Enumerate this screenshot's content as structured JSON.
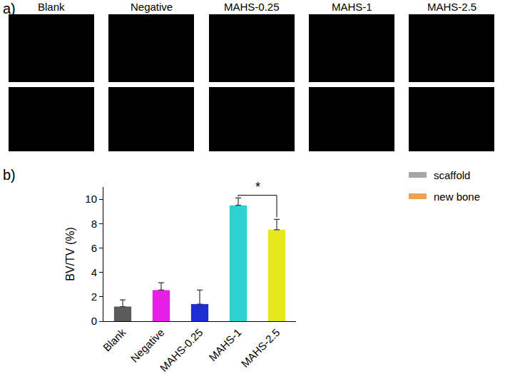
{
  "chart_data": {
    "type": "bar",
    "categories": [
      "Blank",
      "Negative",
      "MAHS-0.25",
      "MAHS-1",
      "MAHS-2.5"
    ],
    "values": [
      1.2,
      2.55,
      1.4,
      9.5,
      7.5
    ],
    "errors": [
      0.55,
      0.6,
      1.15,
      0.6,
      0.85
    ],
    "colors": [
      "#5a5a5a",
      "#e61ee6",
      "#1e2ed2",
      "#2ed2d2",
      "#e6e61e"
    ],
    "y_label": "BV/TV (%)",
    "ylim": [
      0,
      11
    ],
    "yticks": [
      0,
      2,
      4,
      6,
      8,
      10
    ],
    "grid": false,
    "annotations": [
      {
        "from": "MAHS-1",
        "to": "MAHS-2.5",
        "text": "*"
      }
    ]
  },
  "figure": {
    "panel_labels": [
      "a)",
      "b)"
    ],
    "image_titles": [
      "Blank",
      "Negative",
      "MAHS-0.25",
      "MAHS-1",
      "MAHS-2.5"
    ],
    "image_legend": [
      {
        "name": "scaffold",
        "color": "#a6a6a6"
      },
      {
        "name": "new bone",
        "color": "#f0a050"
      }
    ]
  }
}
